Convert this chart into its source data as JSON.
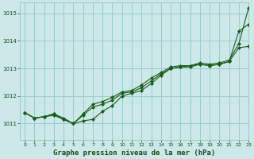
{
  "title": "Graphe pression niveau de la mer (hPa)",
  "background_color": "#cce8e8",
  "plot_bg_color": "#cce8e8",
  "grid_color": "#99cccc",
  "line_color": "#1a5c1a",
  "xlim": [
    -0.5,
    23
  ],
  "ylim": [
    1010.4,
    1015.4
  ],
  "yticks": [
    1011,
    1012,
    1013,
    1014,
    1015
  ],
  "xticks": [
    0,
    1,
    2,
    3,
    4,
    5,
    6,
    7,
    8,
    9,
    10,
    11,
    12,
    13,
    14,
    15,
    16,
    17,
    18,
    19,
    20,
    21,
    22,
    23
  ],
  "series": [
    [
      1011.4,
      1011.2,
      1011.25,
      1011.35,
      1011.15,
      1011.0,
      1011.1,
      1011.15,
      1011.45,
      1011.65,
      1012.0,
      1012.1,
      1012.2,
      1012.45,
      1012.75,
      1013.0,
      1013.05,
      1013.05,
      1013.15,
      1013.1,
      1013.15,
      1013.25,
      1014.35,
      1014.6
    ],
    [
      1011.4,
      1011.2,
      1011.25,
      1011.3,
      1011.15,
      1011.0,
      1011.3,
      1011.6,
      1011.7,
      1011.85,
      1012.1,
      1012.15,
      1012.3,
      1012.55,
      1012.8,
      1013.0,
      1013.05,
      1013.1,
      1013.15,
      1013.1,
      1013.15,
      1013.25,
      1013.75,
      1013.8
    ],
    [
      1011.4,
      1011.2,
      1011.25,
      1011.35,
      1011.2,
      1011.0,
      1011.35,
      1011.7,
      1011.8,
      1011.95,
      1012.15,
      1012.2,
      1012.4,
      1012.65,
      1012.85,
      1013.05,
      1013.1,
      1013.1,
      1013.2,
      1013.15,
      1013.2,
      1013.3,
      1013.9,
      1015.2
    ]
  ]
}
